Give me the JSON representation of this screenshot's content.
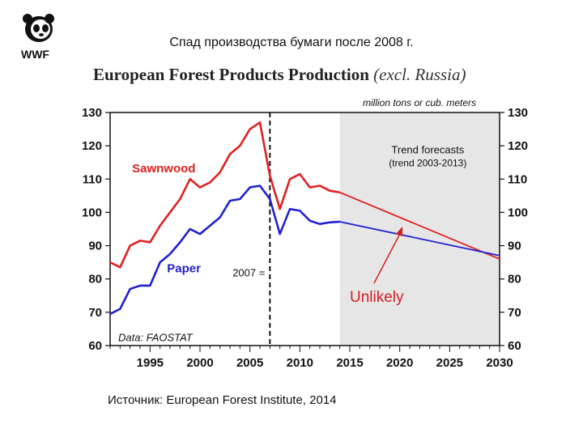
{
  "slide_title": "Спад производства бумаги после 2008 г.",
  "logo_text": "WWF",
  "chart_title_main": "European Forest Products Production",
  "chart_title_sub": "(excl. Russia)",
  "units_label": "million tons or cub. meters",
  "source": "Источник: European Forest Institute, 2014",
  "chart_data": {
    "type": "line",
    "title": "European Forest Products Production (excl. Russia)",
    "ylabel": "million tons or cub. meters",
    "xlim": [
      1991,
      2030
    ],
    "ylim": [
      60,
      130
    ],
    "x_ticks": [
      1995,
      2000,
      2005,
      2010,
      2015,
      2020,
      2025,
      2030
    ],
    "y_ticks": [
      60,
      70,
      80,
      90,
      100,
      110,
      120,
      130
    ],
    "series": [
      {
        "name": "Sawnwood",
        "color": "#e02020",
        "x": [
          1991,
          1992,
          1993,
          1994,
          1995,
          1996,
          1997,
          1998,
          1999,
          2000,
          2001,
          2002,
          2003,
          2004,
          2005,
          2006,
          2007,
          2008,
          2009,
          2010,
          2011,
          2012,
          2013,
          2014
        ],
        "values": [
          85,
          83.5,
          90,
          91.5,
          91,
          96,
          100,
          104,
          110,
          107.5,
          109,
          112,
          117.5,
          120,
          125,
          127,
          111,
          101,
          110,
          111.5,
          107.5,
          108,
          106.5,
          106
        ],
        "forecast": {
          "x": [
            2014,
            2030
          ],
          "values": [
            106,
            86
          ]
        }
      },
      {
        "name": "Paper",
        "color": "#2020d0",
        "x": [
          1991,
          1992,
          1993,
          1994,
          1995,
          1996,
          1997,
          1998,
          1999,
          2000,
          2001,
          2002,
          2003,
          2004,
          2005,
          2006,
          2007,
          2008,
          2009,
          2010,
          2011,
          2012,
          2013,
          2014
        ],
        "values": [
          69.5,
          71,
          77,
          78,
          78,
          85,
          87.5,
          91,
          95,
          93.5,
          96,
          98.5,
          103.5,
          104,
          107.5,
          108,
          104,
          93.5,
          101,
          100.5,
          97.5,
          96.5,
          97,
          97.2
        ],
        "forecast": {
          "x": [
            2014,
            2030
          ],
          "values": [
            97.2,
            87
          ]
        }
      }
    ],
    "forecast_region": {
      "x_start": 2014,
      "x_end": 2030,
      "label": "Trend forecasts",
      "sublabel": "(trend 2003-2013)"
    },
    "marker_line": {
      "x": 2007,
      "label": "2007 ="
    },
    "annotations": [
      {
        "text": "Unlikely",
        "color": "#d02020"
      },
      {
        "text": "Data: FAOSTAT"
      }
    ]
  }
}
